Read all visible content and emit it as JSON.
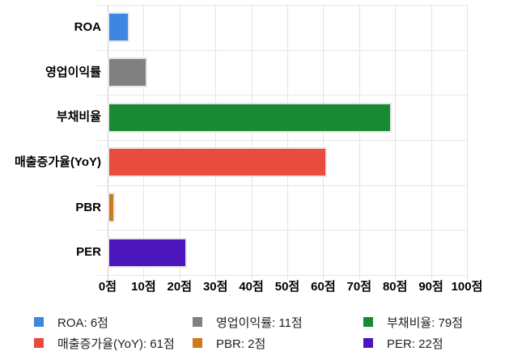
{
  "chart_data": {
    "type": "bar",
    "orientation": "horizontal",
    "title": "",
    "categories": [
      "ROA",
      "영업이익률",
      "부채비율",
      "매출증가율(YoY)",
      "PBR",
      "PER"
    ],
    "values": [
      6,
      11,
      79,
      61,
      2,
      22
    ],
    "unit_suffix": "점",
    "series_colors": [
      "#3D87E0",
      "#808080",
      "#178A33",
      "#E74C3C",
      "#CB7B17",
      "#4B17BD"
    ],
    "xlim": [
      0,
      100
    ],
    "x_tick_step": 10,
    "x_tick_labels": [
      "0점",
      "10점",
      "20점",
      "30점",
      "40점",
      "50점",
      "60점",
      "70점",
      "80점",
      "90점",
      "100점"
    ],
    "grid": true,
    "legend_position": "bottom",
    "legend_labels": [
      "ROA: 6점",
      "영업이익률: 11점",
      "부채비율: 79점",
      "매출증가율(YoY): 61점",
      "PBR: 2점",
      "PER: 22점"
    ]
  },
  "colors": {
    "background": "#ffffff",
    "gridline": "#e3e3e3",
    "axis_line": "#c9c9c9",
    "label_text": "#000000",
    "legend_text": "#212121",
    "bar_stroke": "#e6e6e6"
  }
}
